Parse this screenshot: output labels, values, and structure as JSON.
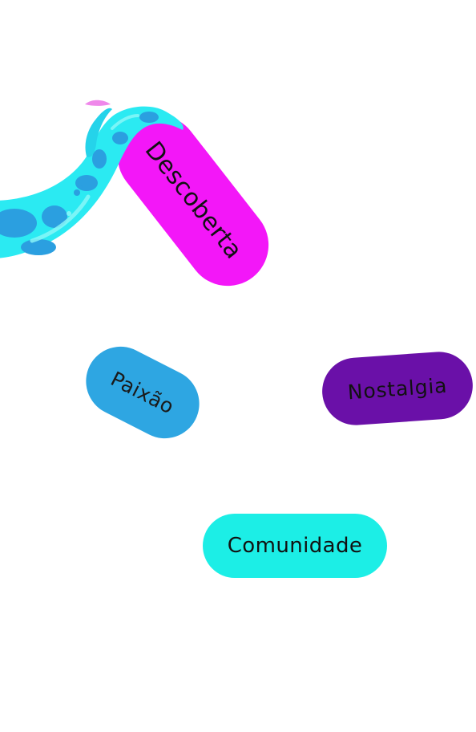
{
  "colors": {
    "background": "#ffffff",
    "descoberta": "#f317f8",
    "paixao": "#2ea6e2",
    "nostalgia": "#6a10a8",
    "comunidade": "#1ceee6",
    "tentacle_main": "#2beaf2",
    "tentacle_spots": "#2b9fe0",
    "tentacle_tip": "#ef88ea"
  },
  "tags": [
    {
      "id": "descoberta",
      "label": "Descoberta"
    },
    {
      "id": "paixao",
      "label": "Paixão"
    },
    {
      "id": "nostalgia",
      "label": "Nostalgia"
    },
    {
      "id": "comunidade",
      "label": "Comunidade"
    }
  ],
  "decoration": {
    "icon": "tentacle-icon"
  }
}
